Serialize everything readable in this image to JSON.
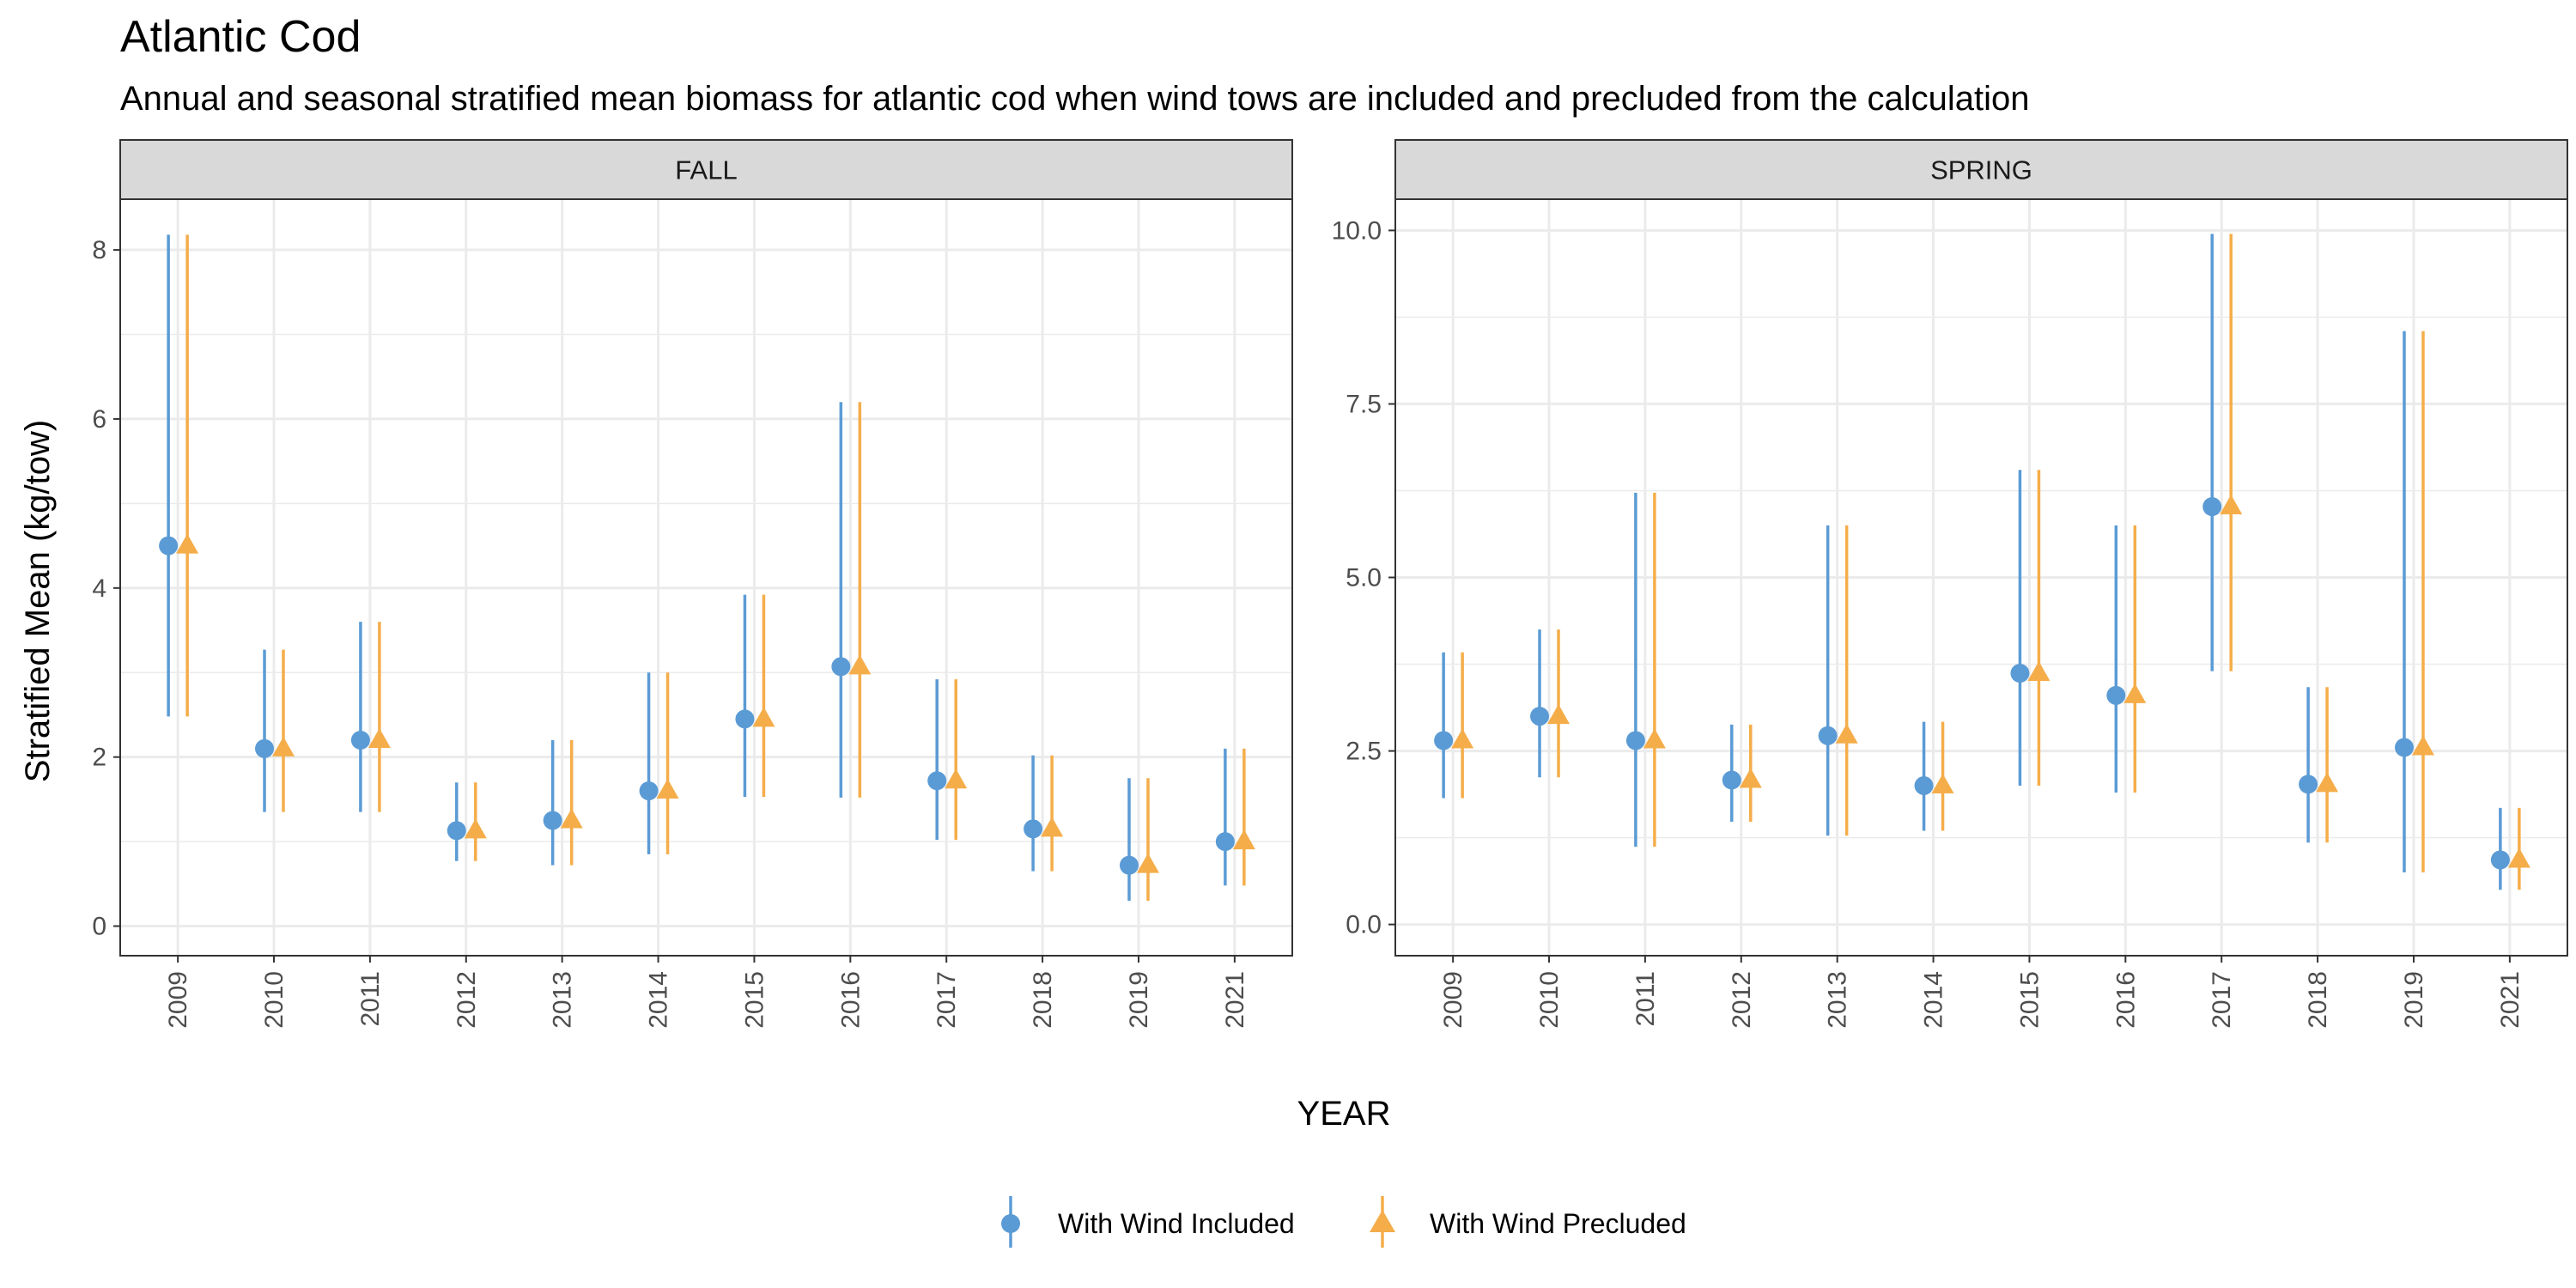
{
  "chart": {
    "title": "Atlantic Cod",
    "subtitle": "Annual and seasonal stratified mean biomass for atlantic cod when wind tows are included and precluded from the calculation",
    "xlabel": "YEAR",
    "ylabel": "Stratified Mean (kg/tow)",
    "legend": {
      "position": "bottom",
      "items": [
        {
          "name": "With Wind Included",
          "shape": "circle"
        },
        {
          "name": "With Wind Precluded",
          "shape": "triangle"
        }
      ]
    }
  },
  "colors": {
    "included": "#5B9BD5",
    "precluded": "#F5AD4A",
    "strip_fill": "#D9D9D9",
    "grid": "#EBEBEB",
    "panel_border": "#333333"
  },
  "chart_data": [
    {
      "panel": "FALL",
      "type": "scatter",
      "categories": [
        "2009",
        "2010",
        "2011",
        "2012",
        "2013",
        "2014",
        "2015",
        "2016",
        "2017",
        "2018",
        "2019",
        "2021"
      ],
      "ylim": [
        -0.35,
        8.6
      ],
      "yticks": [
        0,
        2,
        4,
        6,
        8
      ],
      "ytick_labels": [
        "0",
        "2",
        "4",
        "6",
        "8"
      ],
      "grid": true,
      "series": [
        {
          "name": "With Wind Included",
          "values": [
            4.5,
            2.1,
            2.2,
            1.13,
            1.25,
            1.6,
            2.45,
            3.07,
            1.72,
            1.15,
            0.72,
            1.0
          ],
          "lower": [
            2.48,
            1.35,
            1.35,
            0.77,
            0.72,
            0.85,
            1.53,
            1.52,
            1.02,
            0.65,
            0.3,
            0.48
          ],
          "upper": [
            8.18,
            3.27,
            3.6,
            1.7,
            2.2,
            3.0,
            3.92,
            6.2,
            2.92,
            2.02,
            1.75,
            2.1
          ]
        },
        {
          "name": "With Wind Precluded",
          "values": [
            4.5,
            2.1,
            2.2,
            1.13,
            1.25,
            1.6,
            2.45,
            3.07,
            1.72,
            1.15,
            0.72,
            1.0
          ],
          "lower": [
            2.48,
            1.35,
            1.35,
            0.77,
            0.72,
            0.85,
            1.53,
            1.52,
            1.02,
            0.65,
            0.3,
            0.48
          ],
          "upper": [
            8.18,
            3.27,
            3.6,
            1.7,
            2.2,
            3.0,
            3.92,
            6.2,
            2.92,
            2.02,
            1.75,
            2.1
          ]
        }
      ]
    },
    {
      "panel": "SPRING",
      "type": "scatter",
      "categories": [
        "2009",
        "2010",
        "2011",
        "2012",
        "2013",
        "2014",
        "2015",
        "2016",
        "2017",
        "2018",
        "2019",
        "2021"
      ],
      "ylim": [
        -0.45,
        10.45
      ],
      "yticks": [
        0,
        2.5,
        5,
        7.5,
        10
      ],
      "ytick_labels": [
        "0.0",
        "2.5",
        "5.0",
        "7.5",
        "10.0"
      ],
      "grid": true,
      "series": [
        {
          "name": "With Wind Included",
          "values": [
            2.65,
            3.0,
            2.65,
            2.08,
            2.72,
            2.0,
            3.62,
            3.3,
            6.02,
            2.02,
            2.55,
            0.93
          ],
          "lower": [
            1.82,
            2.12,
            1.12,
            1.48,
            1.28,
            1.35,
            2.0,
            1.9,
            3.65,
            1.18,
            0.75,
            0.5
          ],
          "upper": [
            3.92,
            4.25,
            6.22,
            2.88,
            5.75,
            2.92,
            6.55,
            5.75,
            9.95,
            3.42,
            8.55,
            1.68
          ]
        },
        {
          "name": "With Wind Precluded",
          "values": [
            2.65,
            3.0,
            2.65,
            2.08,
            2.72,
            2.0,
            3.62,
            3.3,
            6.02,
            2.02,
            2.55,
            0.93
          ],
          "lower": [
            1.82,
            2.12,
            1.12,
            1.48,
            1.28,
            1.35,
            2.0,
            1.9,
            3.65,
            1.18,
            0.75,
            0.5
          ],
          "upper": [
            3.92,
            4.25,
            6.22,
            2.88,
            5.75,
            2.92,
            6.55,
            5.75,
            9.95,
            3.42,
            8.55,
            1.68
          ]
        }
      ]
    }
  ]
}
